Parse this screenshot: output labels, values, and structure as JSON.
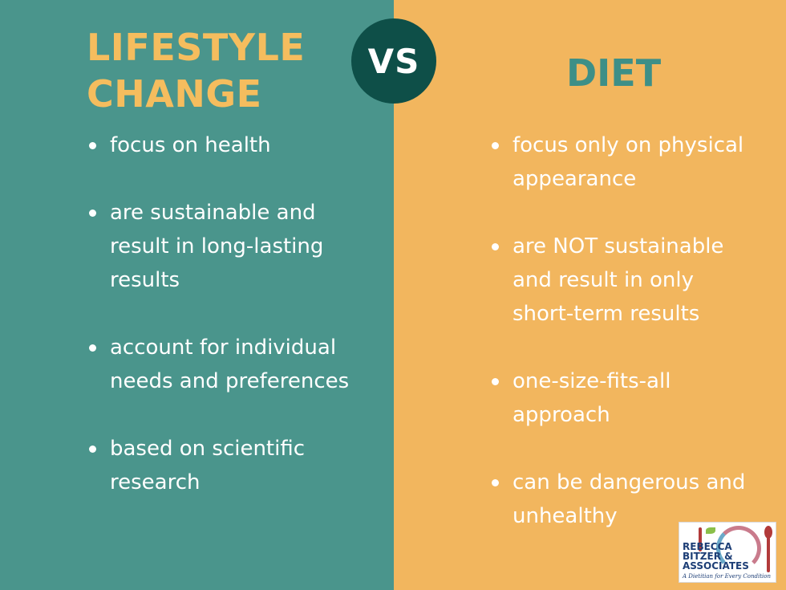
{
  "left": {
    "title_line1": "LIFESTYLE",
    "title_line2": "CHANGE",
    "items": [
      "focus on health",
      "are sustainable and result in long-lasting results",
      "account for individual needs and preferences",
      "based on scientific research"
    ]
  },
  "vs": "VS",
  "right": {
    "title": "DIET",
    "items": [
      "focus only on physical appearance",
      "are NOT sustainable and result in only short-term results",
      "one-size-fits-all approach",
      "can be dangerous and unhealthy"
    ]
  },
  "logo": {
    "line1": "REBECCA",
    "line2": "BITZER &",
    "line3": "ASSOCIATES",
    "tagline": "A Dietitian for Every Condition"
  },
  "colors": {
    "left_bg": "#4a958c",
    "right_bg": "#f2b65e",
    "left_title": "#f5bd5e",
    "right_title": "#3d8f87",
    "vs_circle": "#0e4f48"
  }
}
